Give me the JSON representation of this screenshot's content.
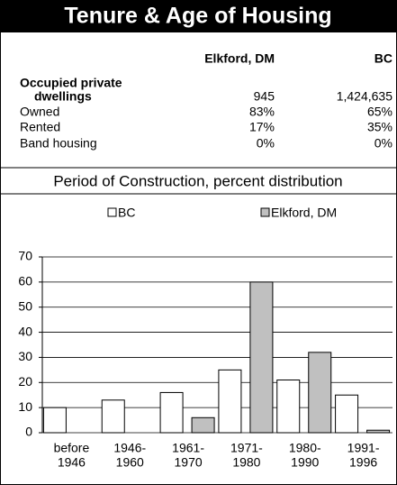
{
  "header": {
    "title": "Tenure & Age of Housing"
  },
  "table": {
    "columns": [
      "Elkford, DM",
      "BC"
    ],
    "rows": [
      {
        "label": [
          "Occupied private",
          "dwellings"
        ],
        "cells": [
          "945",
          "1,424,635"
        ]
      },
      {
        "label": [
          "Owned"
        ],
        "cells": [
          "83%",
          "65%"
        ]
      },
      {
        "label": [
          "Rented"
        ],
        "cells": [
          "17%",
          "35%"
        ]
      },
      {
        "label": [
          "Band housing"
        ],
        "cells": [
          "0%",
          "0%"
        ]
      }
    ]
  },
  "chart_data": {
    "type": "bar",
    "title": "Period of Construction, percent distribution",
    "categories": [
      [
        "before",
        "1946"
      ],
      [
        "1946-",
        "1960"
      ],
      [
        "1961-",
        "1970"
      ],
      [
        "1971-",
        "1980"
      ],
      [
        "1980-",
        "1990"
      ],
      [
        "1991-",
        "1996"
      ]
    ],
    "series": [
      {
        "name": "BC",
        "color": "#ffffff",
        "values": [
          10,
          13,
          16,
          25,
          21,
          15
        ]
      },
      {
        "name": "Elkford, DM",
        "color": "#c0c0c0",
        "values": [
          0,
          0,
          6,
          60,
          32,
          1
        ]
      }
    ],
    "ylim": [
      0,
      70
    ],
    "yticks": [
      0,
      10,
      20,
      30,
      40,
      50,
      60,
      70
    ],
    "grid": true,
    "legend": "top"
  }
}
